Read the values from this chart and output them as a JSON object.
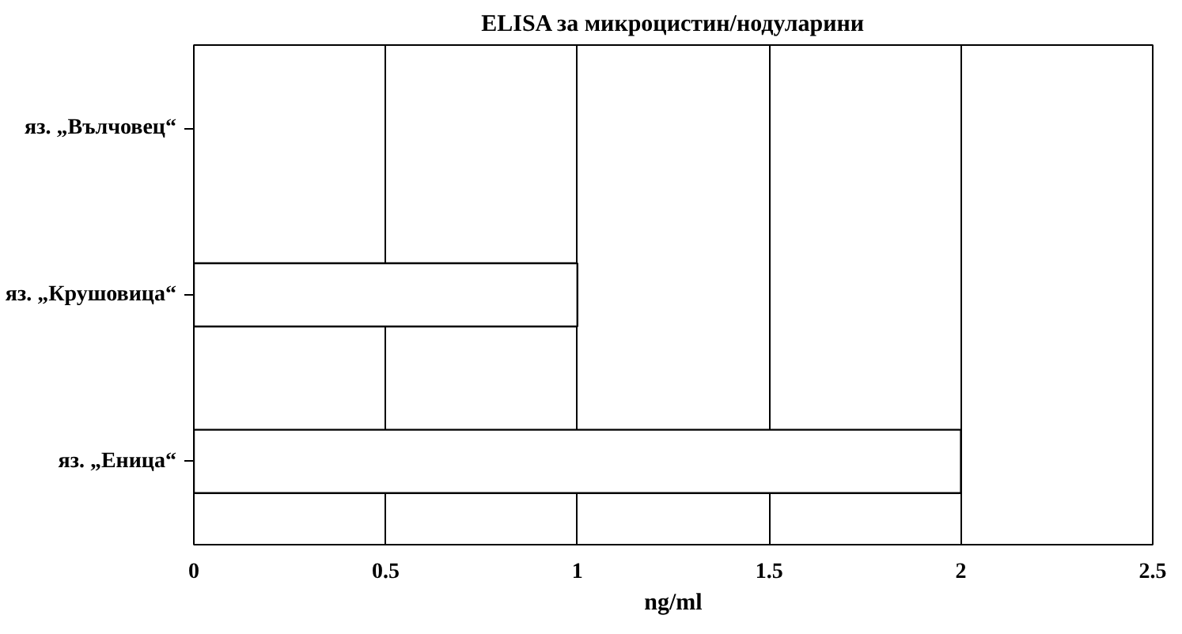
{
  "chart_data": {
    "type": "bar",
    "orientation": "horizontal",
    "title": "ELISA за микроцистин/нодуларини",
    "xlabel": "ng/ml",
    "categories": [
      "яз. „Вълчовец“",
      "яз. „Крушовица“",
      "яз. „Еница“"
    ],
    "values": [
      0,
      1,
      2
    ],
    "color": "#ffffff",
    "xlim": [
      0,
      2.5
    ],
    "xticks": [
      0,
      0.5,
      1,
      1.5,
      2,
      2.5
    ],
    "grid": "x"
  }
}
